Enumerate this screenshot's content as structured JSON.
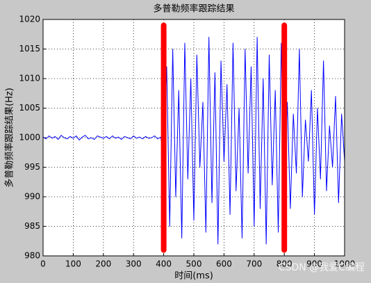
{
  "chart_data": {
    "type": "line",
    "title": "多普勒频率跟踪结果",
    "xlabel": "时间(ms)",
    "ylabel": "多普勒频率跟踪结果(Hz)",
    "xlim": [
      0,
      1000
    ],
    "ylim": [
      980,
      1020
    ],
    "xticks": [
      0,
      100,
      200,
      300,
      400,
      500,
      600,
      700,
      800,
      900,
      1000
    ],
    "yticks": [
      980,
      985,
      990,
      995,
      1000,
      1005,
      1010,
      1015,
      1020
    ],
    "grid": true,
    "series": [
      {
        "color": "#0000ff",
        "x": [
          0,
          10,
          20,
          30,
          40,
          50,
          60,
          70,
          80,
          90,
          100,
          110,
          120,
          130,
          140,
          150,
          160,
          170,
          180,
          190,
          200,
          210,
          220,
          230,
          240,
          250,
          260,
          270,
          280,
          290,
          300,
          310,
          320,
          330,
          340,
          350,
          360,
          370,
          380,
          390,
          400,
          410,
          420,
          430,
          440,
          450,
          460,
          470,
          480,
          490,
          500,
          510,
          520,
          530,
          540,
          550,
          560,
          570,
          580,
          590,
          600,
          610,
          620,
          630,
          640,
          650,
          660,
          670,
          680,
          690,
          700,
          710,
          720,
          730,
          740,
          750,
          760,
          770,
          780,
          790,
          800,
          810,
          820,
          830,
          840,
          850,
          860,
          870,
          880,
          890,
          900,
          910,
          920,
          930,
          940,
          950,
          960,
          970,
          980,
          990,
          1000
        ],
        "values": [
          1000.1,
          999.8,
          1000.3,
          999.9,
          1000.2,
          999.7,
          1000.4,
          1000.0,
          999.8,
          1000.2,
          999.9,
          1000.3,
          999.6,
          1000.1,
          1000.4,
          999.8,
          1000.0,
          999.7,
          1000.3,
          1000.1,
          999.9,
          1000.2,
          999.8,
          1000.3,
          999.9,
          1000.1,
          999.7,
          1000.2,
          1000.0,
          999.8,
          1000.3,
          999.9,
          1000.1,
          999.8,
          1000.2,
          999.9,
          1000.0,
          1000.3,
          999.8,
          1000.1,
          997,
          1012,
          985,
          1015,
          990,
          1008,
          983,
          1016,
          993,
          1010,
          986,
          1014,
          995,
          1006,
          984,
          1017,
          989,
          1011,
          982,
          1013,
          996,
          1009,
          987,
          1016,
          991,
          1005,
          983,
          1015,
          994,
          1012,
          985,
          1017,
          988,
          1010,
          982,
          1014,
          992,
          1008,
          984,
          1016,
          992,
          1006,
          988,
          1004,
          994,
          1015,
          990,
          1003,
          996,
          1008,
          987,
          1005,
          993,
          1013,
          991,
          1002,
          995,
          1007,
          989,
          1004,
          996
        ]
      },
      {
        "color": "#ff0000",
        "x": [
          400,
          400
        ],
        "values": [
          981,
          1019
        ]
      },
      {
        "color": "#ff0000",
        "x": [
          800,
          800
        ],
        "values": [
          981,
          1019
        ]
      }
    ],
    "watermark": "CSDN @我爱C编程"
  }
}
